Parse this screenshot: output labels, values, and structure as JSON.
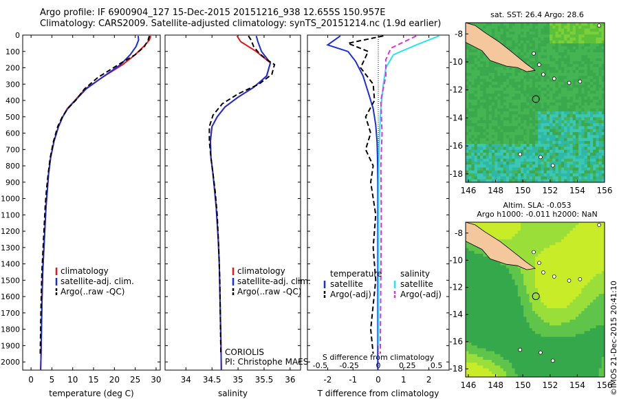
{
  "header": {
    "title_line1": "Argo profile: IF 6900904_127 15-Dec-2015 20151216_938 12.655S 150.957E",
    "title_line2": "Climatology: CARS2009. Satellite-adjusted climatology: synTS_20151214.nc (1.9d earlier)"
  },
  "stamp": "©IMOS 21-Dec-2015 20:41:10",
  "colors": {
    "red": "#e8141b",
    "blue": "#1a2dde",
    "black": "#000000",
    "cyan": "#22e6f0",
    "magenta": "#e02fe0",
    "land": "#f5c79d",
    "sea_green": "#2fa84a",
    "sea_cyan": "#1fc4b4",
    "sea_yellow": "#c8ec28"
  },
  "chart_data": [
    {
      "type": "line",
      "xlabel": "temperature (deg C)",
      "ylabel": "",
      "xlim": [
        -2,
        31
      ],
      "ylim": [
        2050,
        0
      ],
      "xticks": [
        "0",
        "5",
        "10",
        "15",
        "20",
        "25",
        "30"
      ],
      "yticks": [
        "0",
        "100",
        "200",
        "300",
        "400",
        "500",
        "600",
        "700",
        "800",
        "900",
        "1000",
        "1100",
        "1200",
        "1300",
        "1400",
        "1500",
        "1600",
        "1700",
        "1800",
        "1900",
        "2000"
      ],
      "legend": [
        "climatology",
        "satellite-adj. clim.",
        "Argo(..raw -QC)"
      ],
      "series": [
        {
          "name": "climatology",
          "color": "red",
          "x": [
            28.7,
            28.4,
            27,
            25,
            22,
            17,
            13,
            10.5,
            8.7,
            7.6,
            6.6,
            5.5,
            4.7,
            4.2,
            3.9,
            3.6,
            3.4,
            3.2,
            3.0,
            2.8,
            2.7,
            2.6,
            2.5,
            2.4,
            2.3
          ],
          "y": [
            5,
            30,
            70,
            120,
            180,
            260,
            330,
            400,
            450,
            500,
            560,
            650,
            750,
            850,
            950,
            1050,
            1150,
            1250,
            1350,
            1450,
            1550,
            1650,
            1800,
            1950,
            2050
          ]
        },
        {
          "name": "satellite-adj. clim.",
          "color": "blue",
          "x": [
            25.7,
            25.8,
            25.2,
            23.8,
            21.5,
            17,
            13.2,
            10.6,
            8.8,
            7.6,
            6.6,
            5.5,
            4.7,
            4.2,
            3.9,
            3.6,
            3.4,
            3.2,
            3.0,
            2.8,
            2.7,
            2.6,
            2.5,
            2.4,
            2.3
          ],
          "y": [
            5,
            30,
            70,
            120,
            180,
            260,
            330,
            400,
            450,
            500,
            560,
            650,
            750,
            850,
            950,
            1050,
            1150,
            1250,
            1350,
            1450,
            1550,
            1650,
            1800,
            1950,
            2050
          ]
        },
        {
          "name": "Argo(..raw -QC)",
          "color": "black",
          "x": [
            28.4,
            28.1,
            27.2,
            25,
            21,
            16,
            12.8,
            10.7,
            8.8,
            7.5,
            6.4,
            5.4,
            4.6,
            4.1,
            3.7,
            3.4,
            3.2,
            3.0,
            2.8,
            2.6,
            2.5,
            2.4,
            2.3,
            2.2
          ],
          "y": [
            5,
            30,
            70,
            120,
            180,
            260,
            330,
            400,
            450,
            500,
            560,
            650,
            750,
            850,
            950,
            1050,
            1150,
            1250,
            1350,
            1450,
            1550,
            1650,
            1800,
            1950
          ]
        }
      ]
    },
    {
      "type": "line",
      "xlabel": "salinity",
      "xlim": [
        33.6,
        36.2
      ],
      "ylim": [
        2050,
        0
      ],
      "xticks": [
        "34",
        "34.5",
        "35",
        "35.5",
        "36"
      ],
      "legend": [
        "climatology",
        "satellite-adj. clim.",
        "Argo(..raw -QC)"
      ],
      "annotation": [
        "CORIOLIS",
        "PI: Christophe MAES"
      ],
      "series": [
        {
          "name": "climatology",
          "color": "red",
          "x": [
            34.98,
            35.05,
            35.35,
            35.62,
            35.55,
            35.3,
            35.0,
            34.75,
            34.6,
            34.5,
            34.47,
            34.48,
            34.52,
            34.55,
            34.58,
            34.6,
            34.62,
            34.64,
            34.65,
            34.66,
            34.67,
            34.68
          ],
          "y": [
            5,
            40,
            100,
            170,
            250,
            320,
            380,
            440,
            500,
            560,
            650,
            750,
            850,
            950,
            1050,
            1150,
            1250,
            1400,
            1550,
            1700,
            1850,
            2050
          ]
        },
        {
          "name": "satellite-adj. clim.",
          "color": "blue",
          "x": [
            35.35,
            35.38,
            35.45,
            35.62,
            35.55,
            35.3,
            35.0,
            34.75,
            34.6,
            34.5,
            34.47,
            34.48,
            34.52,
            34.55,
            34.58,
            34.6,
            34.62,
            34.64,
            34.65,
            34.66,
            34.67,
            34.68
          ],
          "y": [
            5,
            40,
            100,
            170,
            250,
            320,
            380,
            440,
            500,
            560,
            650,
            750,
            850,
            950,
            1050,
            1150,
            1250,
            1400,
            1550,
            1700,
            1850,
            2050
          ]
        },
        {
          "name": "Argo(..raw -QC)",
          "color": "black",
          "x": [
            35.2,
            35.25,
            35.3,
            35.4,
            35.55,
            35.7,
            35.65,
            35.4,
            35.0,
            34.7,
            34.52,
            34.45,
            34.45,
            34.48,
            34.52,
            34.56,
            34.6,
            34.63,
            34.65,
            34.66,
            34.67
          ],
          "y": [
            5,
            30,
            70,
            110,
            150,
            180,
            240,
            300,
            360,
            420,
            490,
            560,
            650,
            750,
            850,
            950,
            1100,
            1300,
            1500,
            1700,
            1950
          ]
        }
      ]
    },
    {
      "type": "line",
      "xlabel": "T difference from climatology",
      "top_label": "S difference from climatology",
      "xlim": [
        -2.8,
        2.8
      ],
      "ylim": [
        2050,
        0
      ],
      "xticks": [
        "-2",
        "-1",
        "0",
        "1",
        "2"
      ],
      "top_ticks": [
        "-0.5",
        "-0.25",
        "0",
        "0.25",
        "0.5"
      ],
      "legend": [
        "temperature",
        "satellite",
        "Argo(-adj)",
        "salinity",
        "satellite",
        "Argo(-adj)"
      ],
      "series": [
        {
          "name": "satellite",
          "group": "temperature",
          "color": "blue",
          "x": [
            -1.5,
            -2.0,
            -1.2,
            -0.9,
            -0.6,
            -0.4,
            -0.2,
            -0.1,
            -0.05,
            -0.03,
            -0.02,
            -0.02,
            -0.02,
            -0.02,
            -0.02,
            -0.02
          ],
          "y": [
            5,
            60,
            100,
            160,
            250,
            350,
            450,
            550,
            650,
            750,
            900,
            1100,
            1300,
            1500,
            1800,
            2050
          ]
        },
        {
          "name": "Argo(-adj)",
          "group": "temperature",
          "color": "black",
          "x": [
            0.2,
            -1.2,
            -0.4,
            -0.7,
            -0.2,
            -0.15,
            -0.5,
            -0.3,
            -0.5,
            -0.2,
            -0.3,
            -0.1,
            -0.2,
            -0.1,
            -0.3,
            -0.2
          ],
          "y": [
            5,
            50,
            100,
            200,
            300,
            400,
            500,
            600,
            700,
            800,
            900,
            1100,
            1300,
            1500,
            1800,
            1950
          ]
        },
        {
          "name": "satellite",
          "group": "salinity",
          "color": "cyan",
          "x": [
            2.4,
            1.5,
            0.6,
            0.3,
            0.2,
            0.1,
            0.05,
            0.02,
            0.01,
            0.01
          ],
          "y": [
            5,
            60,
            120,
            200,
            300,
            450,
            600,
            800,
            1100,
            1900
          ]
        },
        {
          "name": "Argo(-adj)",
          "group": "salinity",
          "color": "magenta",
          "x": [
            1.5,
            0.5,
            0.3,
            0.3,
            0.1,
            0.15,
            0.1,
            0.12,
            0.1,
            0.08
          ],
          "y": [
            5,
            80,
            150,
            250,
            400,
            600,
            800,
            1100,
            1500,
            1950
          ]
        }
      ]
    },
    {
      "type": "heatmap",
      "title": "sat. SST: 26.4  Argo: 28.6",
      "xlim": [
        145.8,
        156
      ],
      "ylim": [
        -18.6,
        -7.2
      ],
      "xticks": [
        "146",
        "148",
        "150",
        "152",
        "154",
        "156"
      ],
      "yticks": [
        "-8",
        "-10",
        "-12",
        "-14",
        "-16",
        "-18"
      ],
      "argo_position": [
        150.957,
        -12.655
      ]
    },
    {
      "type": "heatmap",
      "title_line1": "Altim. SLA: -0.053",
      "title_line2": "Argo h1000: -0.011 h2000: NaN",
      "xlim": [
        145.8,
        156
      ],
      "ylim": [
        -18.6,
        -7.2
      ],
      "xticks": [
        "146",
        "148",
        "150",
        "152",
        "154",
        "156"
      ],
      "yticks": [
        "-8",
        "-10",
        "-12",
        "-14",
        "-16",
        "-18"
      ],
      "argo_position": [
        150.957,
        -12.655
      ]
    }
  ]
}
